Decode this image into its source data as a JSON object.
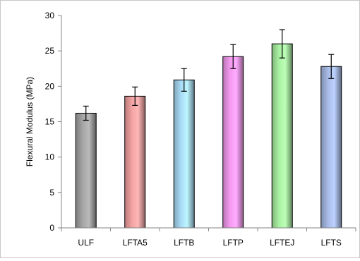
{
  "chart_data": {
    "type": "bar",
    "title": "",
    "xlabel": "",
    "ylabel": "Flexural Modulus (MPa)",
    "ylim": [
      0,
      30
    ],
    "yticks": [
      0,
      5,
      10,
      15,
      20,
      25,
      30
    ],
    "grid": false,
    "legend": "none",
    "categories": [
      "ULF",
      "LFTA5",
      "LFTB",
      "LFTP",
      "LFTEJ",
      "LFTS"
    ],
    "values": [
      16.2,
      18.6,
      20.9,
      24.2,
      26.0,
      22.8
    ],
    "error": [
      1.0,
      1.3,
      1.6,
      1.7,
      2.0,
      1.7
    ],
    "colors": [
      "#a6a6a6",
      "#f4a3a3",
      "#a9dcf7",
      "#f59af0",
      "#a9f2a3",
      "#a9bce8"
    ]
  }
}
